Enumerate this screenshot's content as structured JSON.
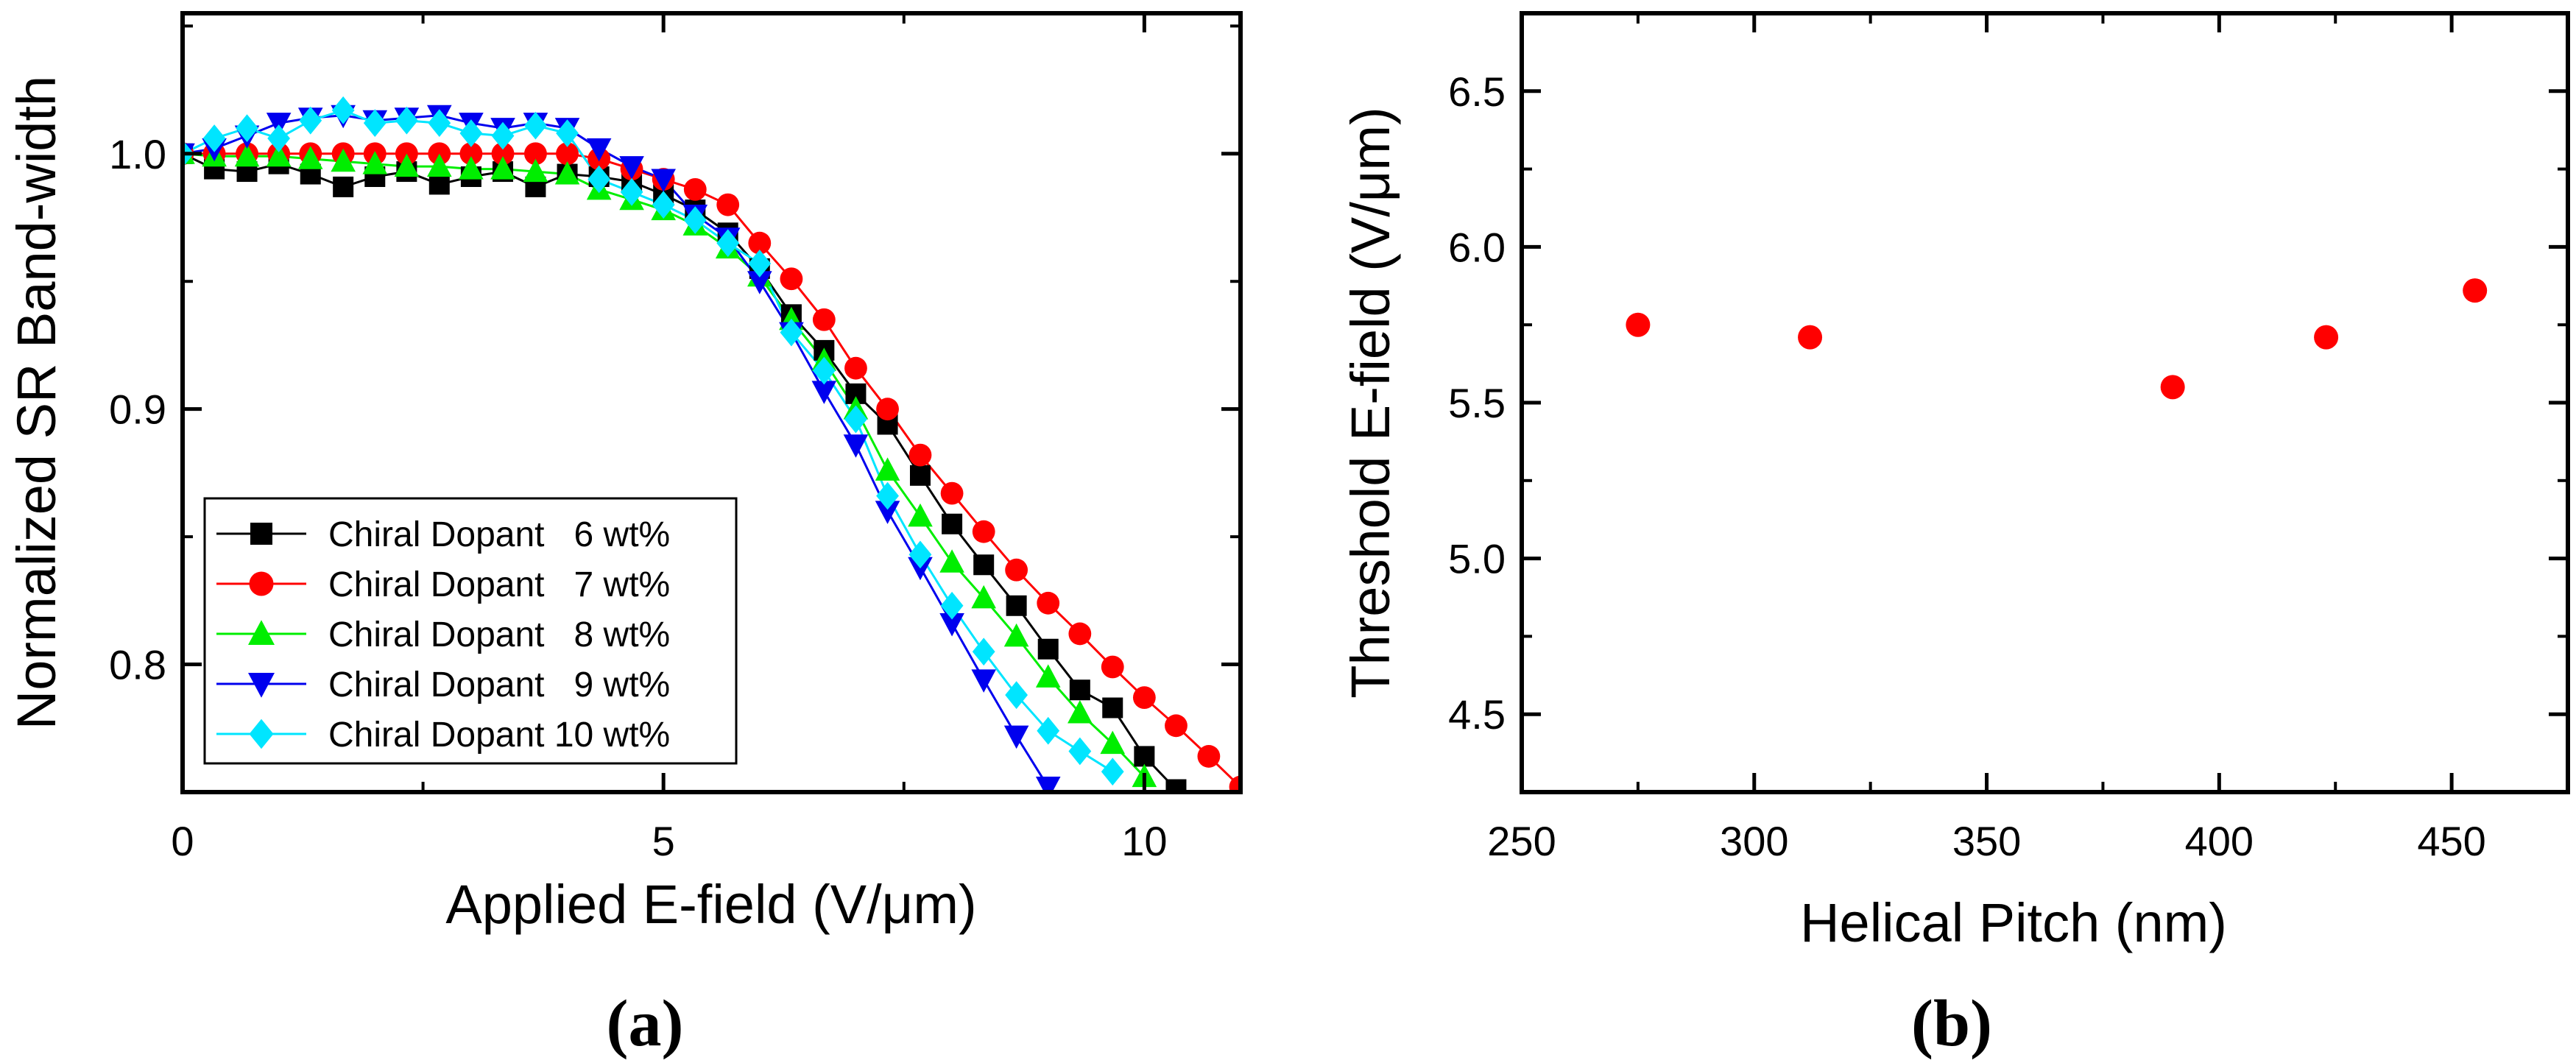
{
  "chart_data": [
    {
      "type": "line",
      "xlabel": "Applied E-field (V/μm)",
      "ylabel": "Normalized SR Band-width",
      "xlim": [
        0,
        11
      ],
      "ylim": [
        0.75,
        1.055
      ],
      "xticks": [
        0,
        5,
        10
      ],
      "yticks": [
        0.8,
        0.9,
        1.0
      ],
      "xtick_labels": [
        "0",
        "5",
        "10"
      ],
      "ytick_labels": [
        "0.8",
        "0.9",
        "1.0"
      ],
      "panel_label": "(a)",
      "legend_position": "lower-left",
      "series": [
        {
          "name": "Chiral Dopant   6 wt%",
          "color": "#000000",
          "marker": "square",
          "x": [
            0,
            0.33,
            0.67,
            1.0,
            1.33,
            1.67,
            2.0,
            2.33,
            2.67,
            3.0,
            3.33,
            3.67,
            4.0,
            4.33,
            4.67,
            5.0,
            5.33,
            5.67,
            6.0,
            6.33,
            6.67,
            7.0,
            7.33,
            7.67,
            8.0,
            8.33,
            8.67,
            9.0,
            9.33,
            9.67,
            10.0,
            10.33
          ],
          "y": [
            1.0,
            0.994,
            0.993,
            0.996,
            0.992,
            0.987,
            0.991,
            0.993,
            0.988,
            0.991,
            0.993,
            0.987,
            0.992,
            0.991,
            0.989,
            0.984,
            0.978,
            0.969,
            0.955,
            0.937,
            0.923,
            0.906,
            0.894,
            0.874,
            0.855,
            0.839,
            0.823,
            0.806,
            0.79,
            0.783,
            0.764,
            0.751
          ]
        },
        {
          "name": "Chiral Dopant   7 wt%",
          "color": "#ff0000",
          "marker": "circle",
          "x": [
            0,
            0.33,
            0.67,
            1.0,
            1.33,
            1.67,
            2.0,
            2.33,
            2.67,
            3.0,
            3.33,
            3.67,
            4.0,
            4.33,
            4.67,
            5.0,
            5.33,
            5.67,
            6.0,
            6.33,
            6.67,
            7.0,
            7.33,
            7.67,
            8.0,
            8.33,
            8.67,
            9.0,
            9.33,
            9.67,
            10.0,
            10.33,
            10.67,
            11.0
          ],
          "y": [
            1.0,
            1.0,
            1.0,
            1.0,
            1.0,
            1.0,
            1.0,
            1.0,
            1.0,
            1.0,
            1.0,
            1.0,
            1.0,
            0.998,
            0.994,
            0.99,
            0.986,
            0.98,
            0.965,
            0.951,
            0.935,
            0.916,
            0.9,
            0.882,
            0.867,
            0.852,
            0.837,
            0.824,
            0.812,
            0.799,
            0.787,
            0.776,
            0.764,
            0.752
          ]
        },
        {
          "name": "Chiral Dopant   8 wt%",
          "color": "#00ee00",
          "marker": "triangle-up",
          "x": [
            0,
            0.33,
            0.67,
            1.0,
            1.33,
            1.67,
            2.0,
            2.33,
            2.67,
            3.0,
            3.33,
            3.67,
            4.0,
            4.33,
            4.67,
            5.0,
            5.33,
            5.67,
            6.0,
            6.33,
            6.67,
            7.0,
            7.33,
            7.67,
            8.0,
            8.33,
            8.67,
            9.0,
            9.33,
            9.67,
            10.0
          ],
          "y": [
            1.0,
            0.999,
            0.999,
            0.999,
            0.998,
            0.997,
            0.996,
            0.995,
            0.995,
            0.994,
            0.994,
            0.993,
            0.992,
            0.986,
            0.982,
            0.978,
            0.972,
            0.963,
            0.952,
            0.935,
            0.919,
            0.9,
            0.876,
            0.858,
            0.84,
            0.826,
            0.811,
            0.795,
            0.781,
            0.769,
            0.756
          ]
        },
        {
          "name": "Chiral Dopant   9 wt%",
          "color": "#0000ee",
          "marker": "triangle-down",
          "x": [
            0,
            0.33,
            0.67,
            1.0,
            1.33,
            1.67,
            2.0,
            2.33,
            2.67,
            3.0,
            3.33,
            3.67,
            4.0,
            4.33,
            4.67,
            5.0,
            5.33,
            5.67,
            6.0,
            6.33,
            6.67,
            7.0,
            7.33,
            7.67,
            8.0,
            8.33,
            8.67,
            9.0
          ],
          "y": [
            1.0,
            1.002,
            1.007,
            1.012,
            1.014,
            1.015,
            1.013,
            1.014,
            1.015,
            1.012,
            1.01,
            1.012,
            1.01,
            1.002,
            0.995,
            0.99,
            0.976,
            0.967,
            0.95,
            0.93,
            0.907,
            0.886,
            0.86,
            0.838,
            0.816,
            0.794,
            0.772,
            0.752
          ]
        },
        {
          "name": "Chiral Dopant 10 wt%",
          "color": "#00e5ff",
          "marker": "diamond",
          "x": [
            0,
            0.33,
            0.67,
            1.0,
            1.33,
            1.67,
            2.0,
            2.33,
            2.67,
            3.0,
            3.33,
            3.67,
            4.0,
            4.33,
            4.67,
            5.0,
            5.33,
            5.67,
            6.0,
            6.33,
            6.67,
            7.0,
            7.33,
            7.67,
            8.0,
            8.33,
            8.67,
            9.0,
            9.33,
            9.67
          ],
          "y": [
            1.0,
            1.006,
            1.01,
            1.006,
            1.013,
            1.017,
            1.012,
            1.013,
            1.012,
            1.008,
            1.007,
            1.011,
            1.008,
            0.99,
            0.985,
            0.98,
            0.974,
            0.965,
            0.957,
            0.93,
            0.915,
            0.896,
            0.866,
            0.843,
            0.823,
            0.805,
            0.788,
            0.774,
            0.766,
            0.758
          ]
        }
      ]
    },
    {
      "type": "scatter",
      "xlabel": "Helical Pitch (nm)",
      "ylabel": "Threshold E-field (V/μm)",
      "xlim": [
        250,
        475
      ],
      "ylim": [
        4.25,
        6.75
      ],
      "xticks": [
        250,
        300,
        350,
        400,
        450
      ],
      "yticks": [
        4.5,
        5.0,
        5.5,
        6.0,
        6.5
      ],
      "xtick_labels": [
        "250",
        "300",
        "350",
        "400",
        "450"
      ],
      "ytick_labels": [
        "4.5",
        "5.0",
        "5.5",
        "6.0",
        "6.5"
      ],
      "panel_label": "(b)",
      "series": [
        {
          "name": "Threshold E-field",
          "color": "#ff0000",
          "marker": "circle",
          "x": [
            275,
            312,
            390,
            423,
            455
          ],
          "y": [
            5.75,
            5.71,
            5.55,
            5.71,
            5.86
          ]
        }
      ]
    }
  ]
}
